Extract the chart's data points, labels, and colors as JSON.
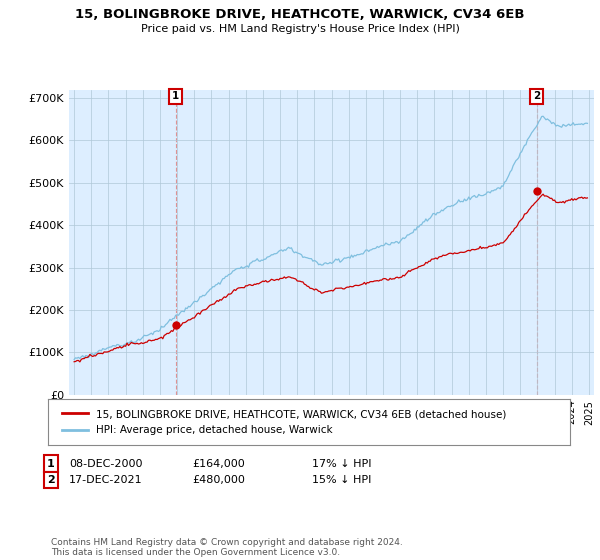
{
  "title": "15, BOLINGBROKE DRIVE, HEATHCOTE, WARWICK, CV34 6EB",
  "subtitle": "Price paid vs. HM Land Registry's House Price Index (HPI)",
  "ylim": [
    0,
    720000
  ],
  "yticks": [
    0,
    100000,
    200000,
    300000,
    400000,
    500000,
    600000,
    700000
  ],
  "ytick_labels": [
    "£0",
    "£100K",
    "£200K",
    "£300K",
    "£400K",
    "£500K",
    "£600K",
    "£700K"
  ],
  "sale1": {
    "date": 2000.92,
    "price": 164000,
    "label": "1"
  },
  "sale2": {
    "date": 2021.96,
    "price": 480000,
    "label": "2"
  },
  "legend_entries": [
    "15, BOLINGBROKE DRIVE, HEATHCOTE, WARWICK, CV34 6EB (detached house)",
    "HPI: Average price, detached house, Warwick"
  ],
  "footer": "Contains HM Land Registry data © Crown copyright and database right 2024.\nThis data is licensed under the Open Government Licence v3.0.",
  "hpi_color": "#7fbfdf",
  "price_color": "#cc0000",
  "vline_color": "#dd8888",
  "plot_bg_color": "#ddeeff",
  "background_color": "#ffffff",
  "grid_color": "#b0c8d8"
}
